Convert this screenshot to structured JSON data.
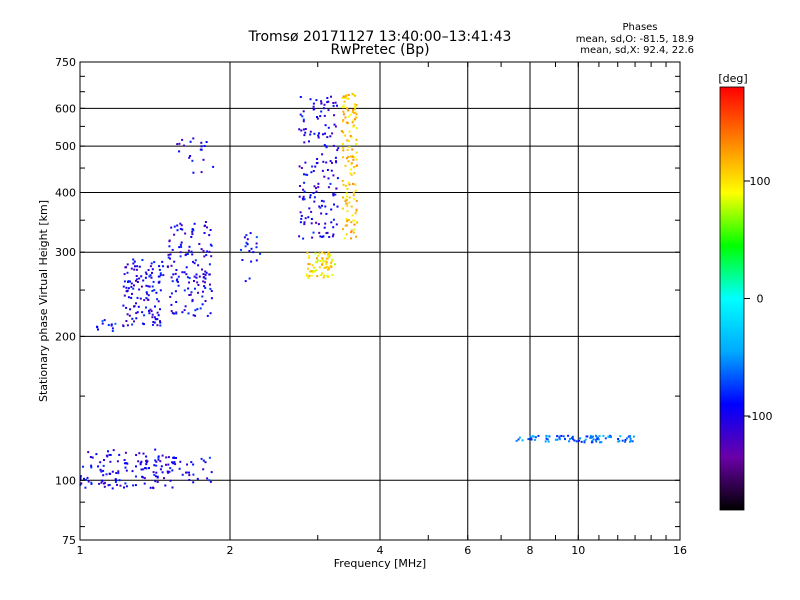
{
  "chart_data": {
    "type": "scatter",
    "title": "Tromsø 20171127 13:40:00–13:41:43",
    "subtitle": "RwPretec (Bp)",
    "xlabel": "Frequency [MHz]",
    "ylabel": "Stationary phase Virtual Height [km]",
    "xscale": "log",
    "yscale": "log",
    "xlim": [
      1,
      16
    ],
    "ylim": [
      75,
      750
    ],
    "xticks": [
      1,
      2,
      4,
      6,
      8,
      10,
      16
    ],
    "yticks": [
      75,
      100,
      200,
      300,
      400,
      500,
      600,
      750
    ],
    "xgrid": [
      2,
      4,
      6,
      8,
      10
    ],
    "ygrid": [
      100,
      200,
      300,
      400,
      500,
      600
    ],
    "grid": true,
    "stats": {
      "heading": "Phases",
      "line_o": "mean, sd,O: -81.5, 18.9",
      "line_x": "mean, sd,X:  92.4, 22.6"
    },
    "colorbar": {
      "label": "[deg]",
      "range": [
        -180,
        180
      ],
      "ticks": [
        100,
        0,
        -100
      ],
      "colors": [
        "#000000",
        "#6a00a8",
        "#0000ff",
        "#00aaff",
        "#00ffff",
        "#00ff00",
        "#ffff00",
        "#ff8000",
        "#ff0000"
      ]
    },
    "clusters": [
      {
        "name": "o-low",
        "f": [
          1.0,
          1.55
        ],
        "h": [
          96,
          116
        ],
        "n": 140,
        "phase": -100
      },
      {
        "name": "o-low-2",
        "f": [
          1.55,
          1.85
        ],
        "h": [
          97,
          112
        ],
        "n": 25,
        "phase": -95
      },
      {
        "name": "o-mid-a",
        "f": [
          1.08,
          1.18
        ],
        "h": [
          205,
          218
        ],
        "n": 12,
        "phase": -80
      },
      {
        "name": "o-mid-b",
        "f": [
          1.22,
          1.47
        ],
        "h": [
          210,
          290
        ],
        "n": 130,
        "phase": -100
      },
      {
        "name": "o-mid-c",
        "f": [
          1.5,
          1.85
        ],
        "h": [
          220,
          350
        ],
        "n": 140,
        "phase": -100
      },
      {
        "name": "o-upper-a",
        "f": [
          1.55,
          1.85
        ],
        "h": [
          440,
          520
        ],
        "n": 20,
        "phase": -100
      },
      {
        "name": "o-upper-b",
        "f": [
          2.1,
          2.3
        ],
        "h": [
          260,
          330
        ],
        "n": 20,
        "phase": -90
      },
      {
        "name": "o-high",
        "f": [
          2.75,
          3.3
        ],
        "h": [
          320,
          640
        ],
        "n": 160,
        "phase": -100
      },
      {
        "name": "x-mid",
        "f": [
          2.85,
          3.25
        ],
        "h": [
          265,
          300
        ],
        "n": 70,
        "phase": 100
      },
      {
        "name": "x-high",
        "f": [
          3.35,
          3.6
        ],
        "h": [
          320,
          650
        ],
        "n": 140,
        "phase": 110
      },
      {
        "name": "f2-trace",
        "f": [
          7.5,
          13.0
        ],
        "h": [
          120,
          124
        ],
        "n": 90,
        "phase": -60
      }
    ]
  }
}
